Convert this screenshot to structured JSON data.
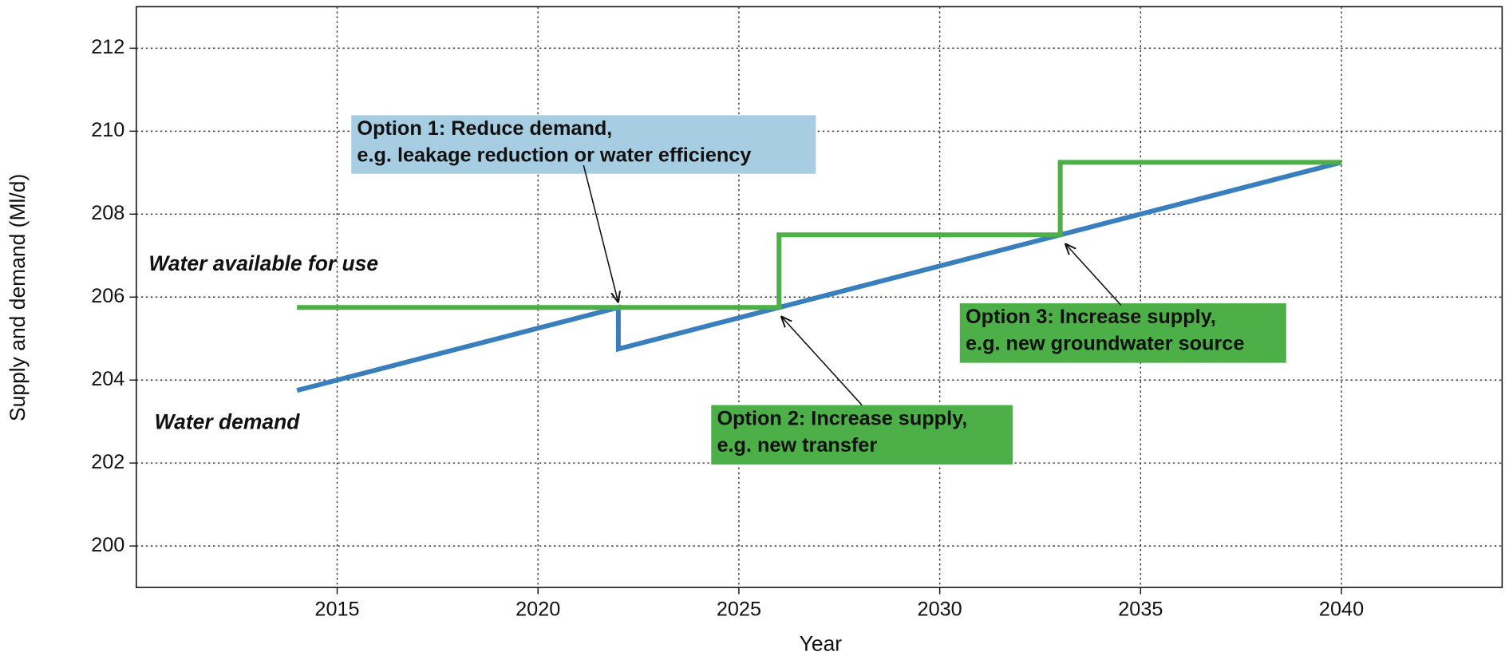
{
  "chart_data": {
    "type": "line",
    "x_label": "Year",
    "y_label": "Supply and demand (Ml/d)",
    "xlim": [
      2010,
      2044
    ],
    "ylim": [
      199,
      213
    ],
    "xticks": [
      2015,
      2020,
      2025,
      2030,
      2035,
      2040
    ],
    "yticks": [
      200,
      202,
      204,
      206,
      208,
      210,
      212
    ],
    "grid": true,
    "series": [
      {
        "name": "Water demand",
        "color": "#3a7fbd",
        "x": [
          2014,
          2022,
          2022,
          2040
        ],
        "values": [
          203.75,
          205.75,
          204.75,
          209.25
        ]
      },
      {
        "name": "Water available for use",
        "color": "#4caf47",
        "x": [
          2014,
          2026,
          2026,
          2033,
          2033,
          2040
        ],
        "values": [
          205.75,
          205.75,
          207.5,
          207.5,
          209.25,
          209.25
        ]
      }
    ],
    "annotations": [
      {
        "lines": [
          "Option 1: Reduce demand,",
          "e.g. leakage reduction or  water efficiency"
        ],
        "color": "#a7cde2",
        "xy": [
          2022,
          205.75
        ]
      },
      {
        "lines": [
          "Option 2: Increase supply,",
          "e.g. new transfer"
        ],
        "color": "#4caf47",
        "xy": [
          2026,
          205.75
        ]
      },
      {
        "lines": [
          "Option 3: Increase supply,",
          "e.g. new groundwater source"
        ],
        "color": "#4caf47",
        "xy": [
          2033,
          207.5
        ]
      }
    ]
  }
}
